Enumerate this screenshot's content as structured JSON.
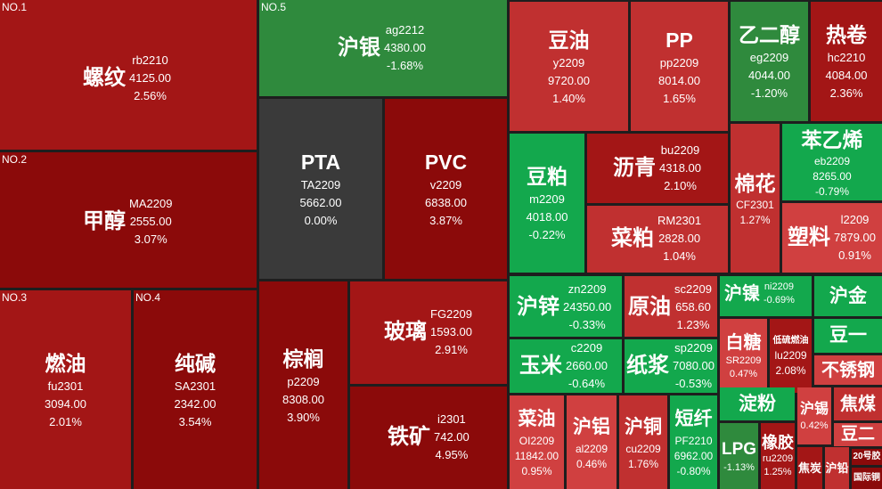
{
  "colors": {
    "up_strong": "#8b0a0a",
    "up_mid": "#a31616",
    "up_light": "#c03030",
    "down_mid": "#2f8a3d",
    "down_bright": "#13a84d",
    "flat": "#3a3a3a"
  },
  "tiles": {
    "luowen": {
      "rank": "NO.1",
      "name": "螺纹",
      "code": "rb2210",
      "price": "4125.00",
      "change": "2.56%"
    },
    "jiachun": {
      "rank": "NO.2",
      "name": "甲醇",
      "code": "MA2209",
      "price": "2555.00",
      "change": "3.07%"
    },
    "ranyou": {
      "rank": "NO.3",
      "name": "燃油",
      "code": "fu2301",
      "price": "3094.00",
      "change": "2.01%"
    },
    "chunjian": {
      "rank": "NO.4",
      "name": "纯碱",
      "code": "SA2301",
      "price": "2342.00",
      "change": "3.54%"
    },
    "huyin": {
      "rank": "NO.5",
      "name": "沪银",
      "code": "ag2212",
      "price": "4380.00",
      "change": "-1.68%"
    },
    "pta": {
      "name": "PTA",
      "code": "TA2209",
      "price": "5662.00",
      "change": "0.00%"
    },
    "pvc": {
      "name": "PVC",
      "code": "v2209",
      "price": "6838.00",
      "change": "3.87%"
    },
    "zonglv": {
      "name": "棕榈",
      "code": "p2209",
      "price": "8308.00",
      "change": "3.90%"
    },
    "boli": {
      "name": "玻璃",
      "code": "FG2209",
      "price": "1593.00",
      "change": "2.91%"
    },
    "tiekuang": {
      "name": "铁矿",
      "code": "i2301",
      "price": "742.00",
      "change": "4.95%"
    },
    "douyou": {
      "name": "豆油",
      "code": "y2209",
      "price": "9720.00",
      "change": "1.40%"
    },
    "pp": {
      "name": "PP",
      "code": "pp2209",
      "price": "8014.00",
      "change": "1.65%"
    },
    "yierchun": {
      "name": "乙二醇",
      "code": "eg2209",
      "price": "4044.00",
      "change": "-1.20%"
    },
    "rejuan": {
      "name": "热卷",
      "code": "hc2210",
      "price": "4084.00",
      "change": "2.36%"
    },
    "doupo": {
      "name": "豆粕",
      "code": "m2209",
      "price": "4018.00",
      "change": "-0.22%"
    },
    "liqing": {
      "name": "沥青",
      "code": "bu2209",
      "price": "4318.00",
      "change": "2.10%"
    },
    "caipo": {
      "name": "菜粕",
      "code": "RM2301",
      "price": "2828.00",
      "change": "1.04%"
    },
    "mianhua": {
      "name": "棉花",
      "code": "CF2301",
      "price": "",
      "change": "1.27%"
    },
    "benyixi": {
      "name": "苯乙烯",
      "code": "eb2209",
      "price": "8265.00",
      "change": "-0.79%"
    },
    "suliao": {
      "name": "塑料",
      "code": "l2209",
      "price": "7879.00",
      "change": "0.91%"
    },
    "huxin": {
      "name": "沪锌",
      "code": "zn2209",
      "price": "24350.00",
      "change": "-0.33%"
    },
    "yuanyou": {
      "name": "原油",
      "code": "sc2209",
      "price": "658.60",
      "change": "1.23%"
    },
    "yumi": {
      "name": "玉米",
      "code": "c2209",
      "price": "2660.00",
      "change": "-0.64%"
    },
    "zhijiang": {
      "name": "纸浆",
      "code": "sp2209",
      "price": "7080.00",
      "change": "-0.53%"
    },
    "nie": {
      "name": "沪镍",
      "code": "ni2209",
      "change": "-0.69%"
    },
    "baitang": {
      "name": "白糖",
      "code": "SR2209",
      "change": "0.47%"
    },
    "diliu": {
      "name": "低硫燃油",
      "code": "lu2209",
      "change": "2.08%"
    },
    "caiyou": {
      "name": "菜油",
      "code": "OI2209",
      "price": "11842.00",
      "change": "0.95%"
    },
    "hulv": {
      "name": "沪铝",
      "code": "al2209",
      "change": "0.46%"
    },
    "hutong": {
      "name": "沪铜",
      "code": "cu2209",
      "change": "1.76%"
    },
    "duanxian": {
      "name": "短纤",
      "code": "PF2210",
      "price": "6962.00",
      "change": "-0.80%"
    },
    "lpg": {
      "name": "LPG",
      "change": "-1.13%"
    },
    "dianfen": {
      "name": "淀粉"
    },
    "xiangjiao": {
      "name": "橡胶",
      "code": "ru2209",
      "change": "1.25%"
    },
    "hujin": {
      "name": "沪金"
    },
    "douyi": {
      "name": "豆一"
    },
    "buxiugang": {
      "name": "不锈钢"
    },
    "huxi": {
      "name": "沪锡",
      "change": "0.42%"
    },
    "jiaomei": {
      "name": "焦煤"
    },
    "douer": {
      "name": "豆二"
    },
    "jiaotan": {
      "name": "焦炭"
    },
    "huqian": {
      "name": "沪铅"
    },
    "ershihao": {
      "name": "20号胶"
    },
    "guojitong": {
      "name": "国际铜"
    }
  }
}
